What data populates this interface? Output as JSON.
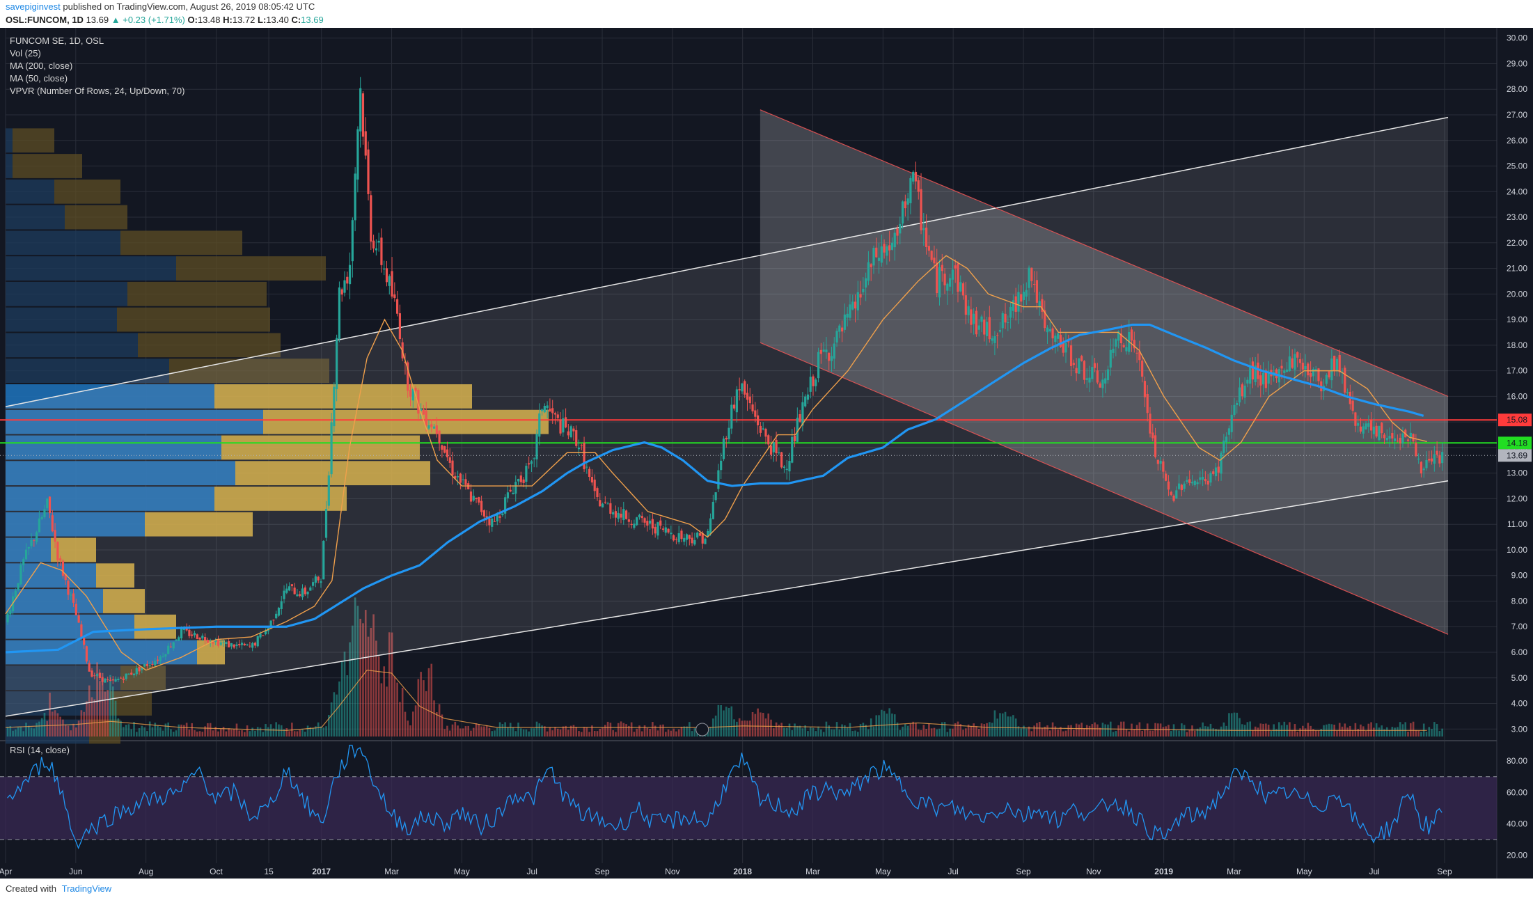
{
  "header": {
    "publisher": "savepiginvest",
    "published_text": "published on TradingView.com, August 26, 2019 08:05:42 UTC",
    "symbol": "OSL:FUNCOM, 1D",
    "price": "13.69",
    "change": "▲ +0.23 (+1.71%)",
    "o_label": "O:",
    "o": "13.48",
    "h_label": "H:",
    "h": "13.72",
    "l_label": "L:",
    "l": "13.40",
    "c_label": "C:",
    "c": "13.69"
  },
  "legend": {
    "title": "FUNCOM SE, 1D, OSL",
    "vol": "Vol (25)",
    "ma200": "MA (200, close)",
    "ma50": "MA (50, close)",
    "vpvr": "VPVR (Number Of Rows, 24, Up/Down, 70)",
    "rsi": "RSI (14, close)"
  },
  "footer": {
    "created": "Created with",
    "brand": "TradingView"
  },
  "colors": {
    "background": "#131722",
    "grid": "#2a2e39",
    "up": "#26a69a",
    "down": "#ef5350",
    "ma200": "#2196f3",
    "ma50": "#f0a04b",
    "resistance": "#ff3b3b",
    "support": "#22dd22",
    "rsi": "#2196f3",
    "rsi_band": "#3a2a55"
  },
  "chart_data": {
    "type": "candlestick",
    "price_axis": {
      "ylim": [
        2.6,
        30.4
      ],
      "ticks": [
        "30.00",
        "29.00",
        "28.00",
        "27.00",
        "26.00",
        "25.00",
        "24.00",
        "23.00",
        "22.00",
        "21.00",
        "20.00",
        "19.00",
        "18.00",
        "17.00",
        "16.00",
        "15.00",
        "14.00",
        "13.00",
        "12.00",
        "11.00",
        "10.00",
        "9.00",
        "8.00",
        "7.00",
        "6.00",
        "5.00",
        "4.00",
        "3.00"
      ],
      "markers": [
        {
          "label": "15.08",
          "value": 15.08,
          "color": "#ff3b3b"
        },
        {
          "label": "14.18",
          "value": 14.18,
          "color": "#22dd22"
        },
        {
          "label": "13.69",
          "value": 13.69,
          "color": "#b2b5be"
        }
      ]
    },
    "time_axis": {
      "labels": [
        "Apr",
        "Jun",
        "Aug",
        "Oct",
        "15",
        "2017",
        "Mar",
        "May",
        "Jul",
        "Sep",
        "Nov",
        "2018",
        "Mar",
        "May",
        "Jul",
        "Sep",
        "Nov",
        "2019",
        "Mar",
        "May",
        "Jul",
        "Sep"
      ],
      "label_months": [
        0,
        2,
        4,
        6,
        7.5,
        9,
        11,
        13,
        15,
        17,
        19,
        21,
        23,
        25,
        27,
        29,
        31,
        33,
        35,
        37,
        39,
        41
      ]
    },
    "price_path": [
      [
        0,
        7.2
      ],
      [
        0.5,
        9.5
      ],
      [
        1.2,
        11.8
      ],
      [
        1.5,
        9.7
      ],
      [
        2,
        7.5
      ],
      [
        2.4,
        5.2
      ],
      [
        3,
        4.8
      ],
      [
        3.6,
        5.2
      ],
      [
        4.4,
        5.8
      ],
      [
        5,
        6.8
      ],
      [
        5.6,
        6.6
      ],
      [
        6.3,
        6.3
      ],
      [
        7,
        6.2
      ],
      [
        7.5,
        7.0
      ],
      [
        8,
        8.5
      ],
      [
        8.5,
        8.3
      ],
      [
        9,
        9.0
      ],
      [
        9.2,
        13.0
      ],
      [
        9.5,
        20.0
      ],
      [
        9.8,
        21.0
      ],
      [
        10.1,
        28.2
      ],
      [
        10.4,
        22.5
      ],
      [
        10.8,
        21.0
      ],
      [
        11.2,
        19.0
      ],
      [
        11.4,
        16.8
      ],
      [
        11.8,
        15.5
      ],
      [
        12.3,
        14.7
      ],
      [
        12.7,
        13.2
      ],
      [
        13.3,
        12.0
      ],
      [
        13.9,
        11.0
      ],
      [
        14.5,
        12.6
      ],
      [
        15,
        13.2
      ],
      [
        15.3,
        15.8
      ],
      [
        15.7,
        15.0
      ],
      [
        16.3,
        14.3
      ],
      [
        16.8,
        12.0
      ],
      [
        17.5,
        11.4
      ],
      [
        18.3,
        11.0
      ],
      [
        19.3,
        10.5
      ],
      [
        20,
        10.5
      ],
      [
        20.5,
        14.5
      ],
      [
        20.9,
        16.5
      ],
      [
        21.6,
        14.5
      ],
      [
        22.2,
        13.2
      ],
      [
        22.6,
        15.0
      ],
      [
        23.2,
        17.5
      ],
      [
        23.6,
        18.0
      ],
      [
        24.2,
        19.5
      ],
      [
        24.8,
        21.5
      ],
      [
        25.4,
        22.0
      ],
      [
        25.8,
        24.7
      ],
      [
        26,
        23.5
      ],
      [
        26.5,
        20.5
      ],
      [
        27,
        21.0
      ],
      [
        27.5,
        19.0
      ],
      [
        28,
        18.5
      ],
      [
        28.6,
        19.0
      ],
      [
        29.2,
        21.0
      ],
      [
        29.6,
        18.5
      ],
      [
        30.1,
        18.0
      ],
      [
        30.7,
        17.0
      ],
      [
        31.3,
        16.5
      ],
      [
        31.7,
        18.5
      ],
      [
        32.2,
        18.0
      ],
      [
        32.7,
        14.0
      ],
      [
        33.2,
        12.0
      ],
      [
        33.6,
        12.8
      ],
      [
        34,
        12.6
      ],
      [
        34.5,
        13.0
      ],
      [
        35,
        15.5
      ],
      [
        35.5,
        17.0
      ],
      [
        36.1,
        16.5
      ],
      [
        36.6,
        17.5
      ],
      [
        37,
        17.2
      ],
      [
        37.5,
        16.5
      ],
      [
        37.9,
        17.5
      ],
      [
        38.5,
        15.0
      ],
      [
        39,
        14.5
      ],
      [
        39.5,
        14.5
      ],
      [
        40,
        14.5
      ],
      [
        40.3,
        13.3
      ],
      [
        40.6,
        13.3
      ],
      [
        40.9,
        13.7
      ]
    ],
    "ma200_path": [
      [
        0,
        6.0
      ],
      [
        1.5,
        6.1
      ],
      [
        2.5,
        6.8
      ],
      [
        4,
        6.9
      ],
      [
        6,
        7.0
      ],
      [
        8,
        7.0
      ],
      [
        8.8,
        7.3
      ],
      [
        9.5,
        7.9
      ],
      [
        10.2,
        8.5
      ],
      [
        11,
        9.0
      ],
      [
        11.8,
        9.4
      ],
      [
        12.6,
        10.3
      ],
      [
        13.5,
        11.1
      ],
      [
        14.5,
        11.7
      ],
      [
        15.3,
        12.3
      ],
      [
        16,
        13.0
      ],
      [
        16.5,
        13.4
      ],
      [
        17.3,
        13.9
      ],
      [
        18.2,
        14.2
      ],
      [
        18.7,
        14.0
      ],
      [
        19.3,
        13.5
      ],
      [
        20,
        12.7
      ],
      [
        20.7,
        12.5
      ],
      [
        21.5,
        12.6
      ],
      [
        22.3,
        12.6
      ],
      [
        23.3,
        12.9
      ],
      [
        24,
        13.6
      ],
      [
        25,
        14.0
      ],
      [
        25.7,
        14.7
      ],
      [
        26.5,
        15.1
      ],
      [
        27.3,
        15.8
      ],
      [
        28.2,
        16.6
      ],
      [
        29,
        17.3
      ],
      [
        29.8,
        17.9
      ],
      [
        30.6,
        18.4
      ],
      [
        31.4,
        18.6
      ],
      [
        32.1,
        18.8
      ],
      [
        32.6,
        18.8
      ],
      [
        33.3,
        18.4
      ],
      [
        34.2,
        17.9
      ],
      [
        35,
        17.4
      ],
      [
        35.8,
        17.0
      ],
      [
        36.6,
        16.7
      ],
      [
        37.4,
        16.4
      ],
      [
        38.2,
        16.0
      ],
      [
        39,
        15.7
      ],
      [
        40,
        15.4
      ],
      [
        40.5,
        15.2
      ]
    ],
    "ma50_path": [
      [
        0,
        7.5
      ],
      [
        1,
        9.5
      ],
      [
        1.6,
        9.2
      ],
      [
        2.3,
        8.2
      ],
      [
        3.3,
        6.0
      ],
      [
        4,
        5.3
      ],
      [
        5,
        5.8
      ],
      [
        6,
        6.5
      ],
      [
        7,
        6.6
      ],
      [
        8,
        7.2
      ],
      [
        8.8,
        7.8
      ],
      [
        9.3,
        8.8
      ],
      [
        9.8,
        14.0
      ],
      [
        10.3,
        17.5
      ],
      [
        10.8,
        19.0
      ],
      [
        11.3,
        17.8
      ],
      [
        11.8,
        15.5
      ],
      [
        12.3,
        13.5
      ],
      [
        13,
        12.5
      ],
      [
        14,
        12.5
      ],
      [
        15,
        12.5
      ],
      [
        16,
        13.8
      ],
      [
        16.8,
        13.8
      ],
      [
        17.3,
        13.0
      ],
      [
        18.3,
        11.5
      ],
      [
        19.5,
        11.0
      ],
      [
        20,
        10.5
      ],
      [
        20.5,
        11.2
      ],
      [
        21,
        12.5
      ],
      [
        21.5,
        13.5
      ],
      [
        22,
        14.5
      ],
      [
        22.5,
        14.5
      ],
      [
        23,
        15.5
      ],
      [
        24,
        17.0
      ],
      [
        25,
        19.0
      ],
      [
        26,
        20.5
      ],
      [
        26.8,
        21.5
      ],
      [
        27.4,
        21.0
      ],
      [
        28,
        20.0
      ],
      [
        29,
        19.5
      ],
      [
        29.5,
        19.5
      ],
      [
        30,
        18.5
      ],
      [
        31,
        18.5
      ],
      [
        31.7,
        18.5
      ],
      [
        32.3,
        17.8
      ],
      [
        33,
        16.0
      ],
      [
        34,
        14.0
      ],
      [
        34.6,
        13.5
      ],
      [
        35.2,
        14.2
      ],
      [
        36,
        16.0
      ],
      [
        37,
        17.0
      ],
      [
        38,
        17.0
      ],
      [
        38.8,
        16.3
      ],
      [
        39.5,
        15.0
      ],
      [
        40,
        14.4
      ],
      [
        40.6,
        14.2
      ]
    ],
    "volume": {
      "scale_max": 6.0,
      "spikes": [
        [
          1.3,
          0.9
        ],
        [
          2.5,
          1.8
        ],
        [
          2.9,
          1.6
        ],
        [
          9.6,
          1.9
        ],
        [
          10.1,
          4.4
        ],
        [
          10.4,
          3.2
        ],
        [
          11,
          3.8
        ],
        [
          12,
          2.4
        ],
        [
          20.5,
          1.0
        ],
        [
          21.4,
          0.8
        ],
        [
          25,
          0.9
        ],
        [
          28.5,
          1.0
        ],
        [
          35,
          0.6
        ]
      ]
    },
    "ma_volume_path": [
      [
        0,
        0.3
      ],
      [
        2,
        0.4
      ],
      [
        3,
        0.5
      ],
      [
        5,
        0.3
      ],
      [
        8,
        0.2
      ],
      [
        9,
        0.3
      ],
      [
        9.5,
        1.0
      ],
      [
        10.3,
        2.2
      ],
      [
        11,
        2.1
      ],
      [
        11.8,
        1.0
      ],
      [
        12.5,
        0.6
      ],
      [
        14,
        0.3
      ],
      [
        20,
        0.3
      ],
      [
        21,
        0.35
      ],
      [
        24,
        0.3
      ],
      [
        26,
        0.45
      ],
      [
        28,
        0.3
      ],
      [
        35,
        0.2
      ],
      [
        40.6,
        0.2
      ]
    ],
    "vpvr_rows": [
      {
        "price": 2.9,
        "up": 0.24,
        "down": 0.09
      },
      {
        "price": 4.0,
        "up": 0.3,
        "down": 0.12
      },
      {
        "price": 5.0,
        "up": 0.33,
        "down": 0.13
      },
      {
        "price": 6.0,
        "up": 0.55,
        "down": 0.08
      },
      {
        "price": 7.0,
        "up": 0.37,
        "down": 0.12
      },
      {
        "price": 8.0,
        "up": 0.28,
        "down": 0.12
      },
      {
        "price": 9.0,
        "up": 0.26,
        "down": 0.11
      },
      {
        "price": 10.0,
        "up": 0.13,
        "down": 0.13
      },
      {
        "price": 11.0,
        "up": 0.4,
        "down": 0.31
      },
      {
        "price": 12.0,
        "up": 0.6,
        "down": 0.38
      },
      {
        "price": 13.0,
        "up": 0.66,
        "down": 0.56
      },
      {
        "price": 14.0,
        "up": 0.62,
        "down": 0.57
      },
      {
        "price": 15.0,
        "up": 0.74,
        "down": 0.82
      },
      {
        "price": 16.0,
        "up": 0.6,
        "down": 0.74
      },
      {
        "price": 17.0,
        "up": 0.47,
        "down": 0.46
      },
      {
        "price": 18.0,
        "up": 0.38,
        "down": 0.41
      },
      {
        "price": 19.0,
        "up": 0.32,
        "down": 0.44
      },
      {
        "price": 20.0,
        "up": 0.35,
        "down": 0.4
      },
      {
        "price": 21.0,
        "up": 0.49,
        "down": 0.43
      },
      {
        "price": 22.0,
        "up": 0.33,
        "down": 0.35
      },
      {
        "price": 23.0,
        "up": 0.17,
        "down": 0.18
      },
      {
        "price": 24.0,
        "up": 0.14,
        "down": 0.19
      },
      {
        "price": 25.0,
        "up": 0.02,
        "down": 0.2
      },
      {
        "price": 26.0,
        "up": 0.02,
        "down": 0.12
      }
    ],
    "horizontal_lines": [
      {
        "name": "resistance",
        "value": 15.08,
        "color": "#ff3b3b"
      },
      {
        "name": "support",
        "value": 14.18,
        "color": "#22dd22"
      }
    ],
    "ascending_channel": {
      "lower": [
        [
          0,
          3.5
        ],
        [
          41.1,
          12.7
        ]
      ],
      "upper": [
        [
          0,
          15.6
        ],
        [
          41.1,
          26.9
        ]
      ]
    },
    "descending_channel": {
      "upper": [
        [
          21.5,
          27.2
        ],
        [
          41.1,
          16.0
        ]
      ],
      "lower": [
        [
          21.5,
          18.1
        ],
        [
          41.1,
          6.7
        ]
      ]
    },
    "rsi": {
      "ylim": [
        15,
        92
      ],
      "ticks": [
        "80.00",
        "60.00",
        "40.00",
        "20.00"
      ],
      "upper_band": 70,
      "lower_band": 30,
      "path": [
        [
          0,
          55
        ],
        [
          0.5,
          65
        ],
        [
          1.2,
          82
        ],
        [
          1.6,
          60
        ],
        [
          2,
          28
        ],
        [
          2.3,
          35
        ],
        [
          3,
          45
        ],
        [
          4,
          55
        ],
        [
          5,
          60
        ],
        [
          5.5,
          75
        ],
        [
          6,
          55
        ],
        [
          6.5,
          60
        ],
        [
          7,
          45
        ],
        [
          7.5,
          50
        ],
        [
          8,
          75
        ],
        [
          8.5,
          55
        ],
        [
          9,
          40
        ],
        [
          9.4,
          70
        ],
        [
          9.8,
          85
        ],
        [
          10.1,
          90
        ],
        [
          10.4,
          72
        ],
        [
          11,
          45
        ],
        [
          11.5,
          38
        ],
        [
          12,
          45
        ],
        [
          12.5,
          40
        ],
        [
          13,
          48
        ],
        [
          13.5,
          38
        ],
        [
          14,
          45
        ],
        [
          14.5,
          60
        ],
        [
          15,
          55
        ],
        [
          15.5,
          75
        ],
        [
          16,
          55
        ],
        [
          16.5,
          45
        ],
        [
          17,
          42
        ],
        [
          17.5,
          38
        ],
        [
          18,
          50
        ],
        [
          18.5,
          40
        ],
        [
          19,
          42
        ],
        [
          19.5,
          45
        ],
        [
          20,
          40
        ],
        [
          20.5,
          65
        ],
        [
          21,
          80
        ],
        [
          21.5,
          55
        ],
        [
          22,
          52
        ],
        [
          22.5,
          48
        ],
        [
          23,
          60
        ],
        [
          23.5,
          62
        ],
        [
          24,
          58
        ],
        [
          24.5,
          70
        ],
        [
          25,
          75
        ],
        [
          25.5,
          65
        ],
        [
          26,
          55
        ],
        [
          26.5,
          50
        ],
        [
          27,
          50
        ],
        [
          27.5,
          45
        ],
        [
          28,
          45
        ],
        [
          28.5,
          52
        ],
        [
          29,
          45
        ],
        [
          29.5,
          50
        ],
        [
          30,
          42
        ],
        [
          30.5,
          50
        ],
        [
          31,
          45
        ],
        [
          31.5,
          55
        ],
        [
          32,
          50
        ],
        [
          32.5,
          38
        ],
        [
          33,
          30
        ],
        [
          33.5,
          45
        ],
        [
          34,
          45
        ],
        [
          34.5,
          55
        ],
        [
          35,
          70
        ],
        [
          35.5,
          70
        ],
        [
          36,
          55
        ],
        [
          36.5,
          60
        ],
        [
          37,
          55
        ],
        [
          37.5,
          52
        ],
        [
          38,
          60
        ],
        [
          38.5,
          40
        ],
        [
          39,
          32
        ],
        [
          39.5,
          38
        ],
        [
          40,
          62
        ],
        [
          40.3,
          42
        ],
        [
          40.6,
          38
        ],
        [
          41,
          48
        ]
      ]
    }
  }
}
